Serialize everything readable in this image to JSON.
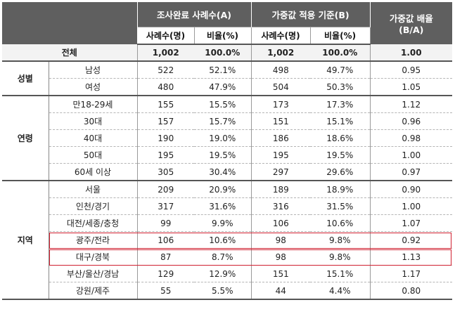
{
  "header": {
    "col_survey": "조사완료 사례수(A)",
    "col_weight": "가중값 적용 기준(B)",
    "col_ratio": "가중값 배율",
    "col_ratio_sub": "(B/A)",
    "sub_cases": "사례수(명)",
    "sub_pct": "비율(%)"
  },
  "total": {
    "label": "전체",
    "a_n": "1,002",
    "a_pct": "100.0%",
    "b_n": "1,002",
    "b_pct": "100.0%",
    "ratio": "1.00"
  },
  "groups": [
    {
      "name": "성별",
      "rows": [
        {
          "label": "남성",
          "a_n": "522",
          "a_pct": "52.1%",
          "b_n": "498",
          "b_pct": "49.7%",
          "ratio": "0.95"
        },
        {
          "label": "여성",
          "a_n": "480",
          "a_pct": "47.9%",
          "b_n": "504",
          "b_pct": "50.3%",
          "ratio": "1.05"
        }
      ]
    },
    {
      "name": "연령",
      "rows": [
        {
          "label": "만18-29세",
          "a_n": "155",
          "a_pct": "15.5%",
          "b_n": "173",
          "b_pct": "17.3%",
          "ratio": "1.12"
        },
        {
          "label": "30대",
          "a_n": "157",
          "a_pct": "15.7%",
          "b_n": "151",
          "b_pct": "15.1%",
          "ratio": "0.96"
        },
        {
          "label": "40대",
          "a_n": "190",
          "a_pct": "19.0%",
          "b_n": "186",
          "b_pct": "18.6%",
          "ratio": "0.98"
        },
        {
          "label": "50대",
          "a_n": "195",
          "a_pct": "19.5%",
          "b_n": "195",
          "b_pct": "19.5%",
          "ratio": "1.00"
        },
        {
          "label": "60세 이상",
          "a_n": "305",
          "a_pct": "30.4%",
          "b_n": "297",
          "b_pct": "29.6%",
          "ratio": "0.97"
        }
      ]
    },
    {
      "name": "지역",
      "rows": [
        {
          "label": "서울",
          "a_n": "209",
          "a_pct": "20.9%",
          "b_n": "189",
          "b_pct": "18.9%",
          "ratio": "0.90"
        },
        {
          "label": "인천/경기",
          "a_n": "317",
          "a_pct": "31.6%",
          "b_n": "316",
          "b_pct": "31.5%",
          "ratio": "1.00"
        },
        {
          "label": "대전/세종/충청",
          "a_n": "99",
          "a_pct": "9.9%",
          "b_n": "106",
          "b_pct": "10.6%",
          "ratio": "1.07"
        },
        {
          "label": "광주/전라",
          "a_n": "106",
          "a_pct": "10.6%",
          "b_n": "98",
          "b_pct": "9.8%",
          "ratio": "0.92",
          "highlight": true
        },
        {
          "label": "대구/경북",
          "a_n": "87",
          "a_pct": "8.7%",
          "b_n": "98",
          "b_pct": "9.8%",
          "ratio": "1.13",
          "highlight": true
        },
        {
          "label": "부산/울산/경남",
          "a_n": "129",
          "a_pct": "12.9%",
          "b_n": "151",
          "b_pct": "15.1%",
          "ratio": "1.17"
        },
        {
          "label": "강원/제주",
          "a_n": "55",
          "a_pct": "5.5%",
          "b_n": "44",
          "b_pct": "4.4%",
          "ratio": "0.80"
        }
      ]
    }
  ],
  "colors": {
    "header_bg": "#5f5f5f",
    "highlight_border": "#d02030"
  }
}
